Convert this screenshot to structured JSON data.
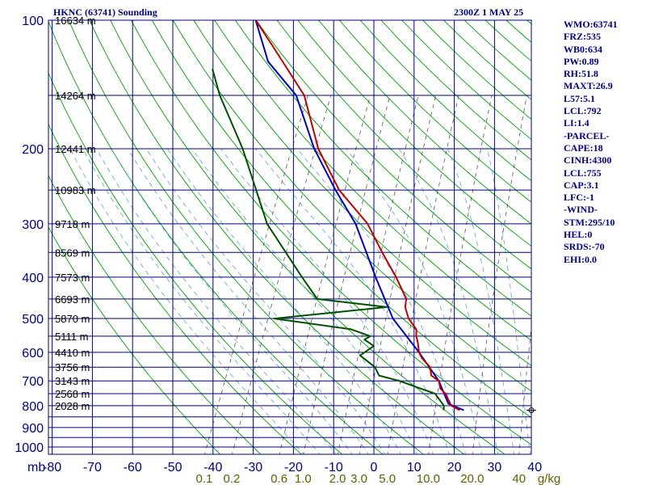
{
  "header": {
    "station": "HKNC (63741) Sounding",
    "valid": "2300Z  1 MAY 25"
  },
  "side_panel": {
    "lines": [
      "WMO:63741",
      "FRZ:535",
      "WB0:634",
      "PW:0.89",
      "RH:51.8",
      "MAXT:26.9",
      "L57:5.1",
      "LCL:792",
      "LI:1.4",
      "-PARCEL-",
      "CAPE:18",
      "CINH:4300",
      "LCL:755",
      "CAP:3.1",
      "LFC:-1",
      "-WIND-",
      "STM:295/10",
      "HEL:0",
      "SRDS:-70",
      "EHI:0.0"
    ]
  },
  "colors": {
    "frame": "#000080",
    "isotherm": "#000080",
    "dry_adiabat": "#00a000",
    "moist_adiabat": "#5aa0d8",
    "mixing_ratio": "#555555",
    "temperature": "#c00000",
    "dewpoint": "#005000",
    "parcel": "#0000c0",
    "tick_text": "#000080",
    "mixing_text": "#606000",
    "height_text": "#000000"
  },
  "chart_data": {
    "type": "skew-t",
    "x_unit": "C",
    "y_unit": "mb",
    "pressure_ticks": [
      100,
      200,
      300,
      400,
      500,
      600,
      700,
      800,
      900,
      1000
    ],
    "pressure_unit_label": "mb",
    "temperature_ticks": [
      -80,
      -70,
      -60,
      -50,
      -40,
      -30,
      -20,
      -10,
      0,
      10,
      20,
      30,
      40
    ],
    "temperature_tick_labels": [
      "-80",
      "-70",
      "-60",
      "-50",
      "-40",
      "-30",
      "-20",
      "-10",
      "0",
      "10",
      "20",
      "30",
      "40"
    ],
    "xlim": [
      -80,
      40
    ],
    "ylim": [
      1050,
      100
    ],
    "height_labels": [
      {
        "p": 100,
        "label": "16634 m"
      },
      {
        "p": 150,
        "label": "14264 m"
      },
      {
        "p": 200,
        "label": "12441 m"
      },
      {
        "p": 250,
        "label": "10983 m"
      },
      {
        "p": 300,
        "label": "9718 m"
      },
      {
        "p": 350,
        "label": "8569 m"
      },
      {
        "p": 400,
        "label": "7573 m"
      },
      {
        "p": 450,
        "label": "6693 m"
      },
      {
        "p": 500,
        "label": "5870 m"
      },
      {
        "p": 550,
        "label": "5111 m"
      },
      {
        "p": 600,
        "label": "4410 m"
      },
      {
        "p": 650,
        "label": "3756 m"
      },
      {
        "p": 700,
        "label": "3143 m"
      },
      {
        "p": 750,
        "label": "2568 m"
      },
      {
        "p": 800,
        "label": "2028 m"
      }
    ],
    "mixing_ratio_lines": [
      {
        "w": 0.1,
        "label": "0.1"
      },
      {
        "w": 0.2,
        "label": "0.2"
      },
      {
        "w": 0.6,
        "label": "0.6"
      },
      {
        "w": 1.0,
        "label": "1.0"
      },
      {
        "w": 2.0,
        "label": "2.0"
      },
      {
        "w": 3.0,
        "label": "3.0"
      },
      {
        "w": 5.0,
        "label": "5.0"
      },
      {
        "w": 10.0,
        "label": "10.0"
      },
      {
        "w": 20.0,
        "label": "20.0"
      },
      {
        "w": 40.0,
        "label": "40"
      }
    ],
    "mixing_ratio_unit": "g/kg",
    "series": [
      {
        "key": "temperature",
        "points": [
          [
            820,
            17.0
          ],
          [
            800,
            14.3
          ],
          [
            750,
            11.5
          ],
          [
            730,
            9.6
          ],
          [
            700,
            8.3
          ],
          [
            680,
            5.8
          ],
          [
            650,
            4.5
          ],
          [
            620,
            1.5
          ],
          [
            600,
            0.0
          ],
          [
            570,
            -1.4
          ],
          [
            550,
            -2.6
          ],
          [
            530,
            -3.4
          ],
          [
            500,
            -6.6
          ],
          [
            470,
            -8.8
          ],
          [
            450,
            -9.5
          ],
          [
            400,
            -14.6
          ],
          [
            350,
            -21.0
          ],
          [
            300,
            -28.0
          ],
          [
            250,
            -39.1
          ],
          [
            200,
            -49.2
          ],
          [
            150,
            -59.0
          ],
          [
            115,
            -72.7
          ],
          [
            100,
            -80.0
          ]
        ]
      },
      {
        "key": "dewpoint",
        "points": [
          [
            820,
            13.0
          ],
          [
            800,
            12.5
          ],
          [
            750,
            8.9
          ],
          [
            720,
            2.7
          ],
          [
            700,
            -1.5
          ],
          [
            680,
            -7.2
          ],
          [
            650,
            -9.2
          ],
          [
            610,
            -14.3
          ],
          [
            580,
            -12.0
          ],
          [
            560,
            -15.1
          ],
          [
            550,
            -14.0
          ],
          [
            530,
            -19.6
          ],
          [
            500,
            -40.0
          ],
          [
            470,
            -13.4
          ],
          [
            450,
            -31.6
          ],
          [
            400,
            -38.0
          ],
          [
            300,
            -53.0
          ],
          [
            200,
            -68.0
          ],
          [
            150,
            -80.0
          ],
          [
            130,
            -85.0
          ]
        ]
      },
      {
        "key": "parcel",
        "points": [
          [
            820,
            18.0
          ],
          [
            792,
            13.4
          ],
          [
            700,
            8.3
          ],
          [
            600,
            0.0
          ],
          [
            500,
            -10.5
          ],
          [
            400,
            -19.7
          ],
          [
            300,
            -31.0
          ],
          [
            250,
            -40.0
          ],
          [
            200,
            -50.2
          ],
          [
            150,
            -61.0
          ],
          [
            125,
            -72.0
          ],
          [
            100,
            -80.0
          ]
        ]
      }
    ]
  }
}
